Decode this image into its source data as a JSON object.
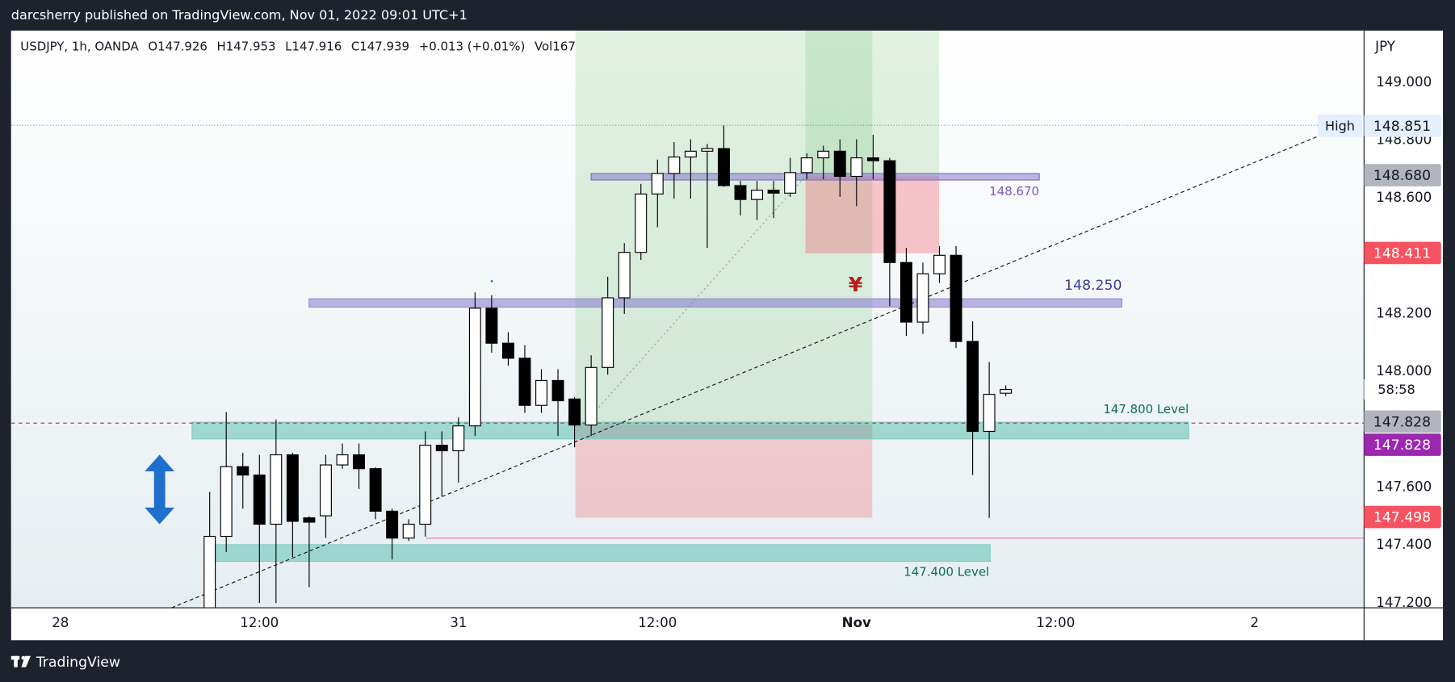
{
  "publisher": "darcsherry published on TradingView.com, Nov 01, 2022 09:01 UTC+1",
  "brand": "TradingView",
  "chart_data": {
    "type": "candlestick",
    "title": "USDJPY, 1h, OANDA",
    "ohlc_text": [
      "O147.926",
      "H147.953",
      "L147.916",
      "C147.939",
      "+0.013 (+0.01%)",
      "Vol167"
    ],
    "currency": "JPY",
    "x": [
      9,
      10,
      11,
      12,
      13,
      14,
      15,
      16,
      17,
      18,
      19,
      20,
      21,
      22,
      23,
      24,
      25,
      26,
      27,
      28,
      29,
      30,
      31,
      32,
      33,
      34,
      35,
      36,
      37,
      38,
      39,
      40,
      41,
      42,
      43,
      44,
      45,
      46,
      47,
      48,
      49,
      50,
      51,
      52,
      53,
      54,
      55,
      56,
      57
    ],
    "open": [
      147.16,
      147.431,
      147.672,
      147.643,
      147.473,
      147.713,
      147.495,
      147.502,
      147.678,
      147.713,
      147.665,
      147.518,
      147.425,
      147.473,
      147.746,
      147.727,
      147.813,
      148.22,
      148.099,
      148.047,
      147.884,
      147.97,
      147.906,
      147.816,
      148.015,
      148.256,
      148.413,
      148.615,
      148.686,
      148.743,
      148.763,
      148.772,
      148.644,
      148.596,
      148.628,
      148.618,
      148.689,
      148.74,
      148.763,
      148.676,
      148.74,
      148.73,
      148.378,
      148.172,
      148.339,
      148.403,
      148.105,
      147.794,
      147.926
    ],
    "high": [
      147.585,
      147.861,
      147.72,
      147.713,
      147.835,
      147.72,
      147.5,
      147.713,
      147.752,
      147.752,
      147.67,
      147.527,
      147.49,
      147.794,
      147.794,
      147.842,
      148.275,
      148.265,
      148.137,
      148.092,
      148.009,
      148.009,
      147.912,
      148.057,
      148.329,
      148.445,
      148.65,
      148.734,
      148.795,
      148.804,
      148.788,
      148.852,
      148.66,
      148.66,
      148.66,
      148.74,
      148.756,
      148.782,
      148.804,
      148.804,
      148.82,
      148.74,
      148.429,
      148.378,
      148.435,
      148.435,
      148.175,
      148.034,
      147.953
    ],
    "low": [
      147.1,
      147.377,
      147.527,
      147.2,
      147.2,
      147.36,
      147.255,
      147.425,
      147.665,
      147.595,
      147.49,
      147.351,
      147.415,
      147.43,
      147.569,
      147.617,
      147.778,
      148.066,
      148.021,
      147.858,
      147.858,
      147.778,
      147.739,
      147.778,
      147.99,
      148.2,
      148.387,
      148.5,
      148.599,
      148.599,
      148.429,
      148.64,
      148.541,
      148.525,
      148.532,
      148.605,
      148.666,
      148.666,
      148.605,
      148.573,
      148.666,
      148.227,
      148.124,
      148.131,
      148.307,
      148.082,
      147.643,
      147.495,
      147.916
    ],
    "close": [
      147.431,
      147.672,
      147.643,
      147.473,
      147.713,
      147.483,
      147.48,
      147.678,
      147.713,
      147.665,
      147.518,
      147.425,
      147.473,
      147.746,
      147.727,
      147.813,
      148.22,
      148.099,
      148.047,
      147.884,
      147.97,
      147.9,
      147.816,
      148.015,
      148.256,
      148.413,
      148.615,
      148.686,
      148.743,
      148.763,
      148.772,
      148.644,
      148.596,
      148.628,
      148.618,
      148.689,
      148.74,
      148.763,
      148.676,
      148.74,
      148.73,
      148.378,
      148.172,
      148.339,
      148.403,
      148.105,
      147.794,
      147.922,
      147.939
    ],
    "up_color": "#ffffff",
    "down_color": "#000000",
    "wick_color": "#000000",
    "xlim": [
      -2.97,
      78.6
    ],
    "xticks": [
      {
        "value": 0,
        "label": "28"
      },
      {
        "value": 12,
        "label": "12:00"
      },
      {
        "value": 24,
        "label": "31"
      },
      {
        "value": 36,
        "label": "12:00"
      },
      {
        "value": 48,
        "label": "Nov",
        "bold": true
      },
      {
        "value": 60,
        "label": "12:00"
      },
      {
        "value": 72,
        "label": "2"
      }
    ],
    "ylim": [
      147.184,
      149.18
    ],
    "yticks": [
      {
        "value": 149,
        "label": "149.000"
      },
      {
        "value": 148.8,
        "label": "148.800"
      },
      {
        "value": 148.6,
        "label": "148.600"
      },
      {
        "value": 148.2,
        "label": "148.200"
      },
      {
        "value": 148,
        "label": "148.000"
      },
      {
        "value": 147.6,
        "label": "147.600"
      },
      {
        "value": 147.4,
        "label": "147.400"
      },
      {
        "value": 147.2,
        "label": "147.200"
      }
    ],
    "grid": false,
    "price_labels": [
      {
        "value": 148.851,
        "label": "148.851",
        "tag": "High",
        "bg": "#e3effd",
        "fg": "#131722"
      },
      {
        "value": 148.68,
        "label": "148.680",
        "bg": "#b2b5be",
        "fg": "#131722"
      },
      {
        "value": 148.411,
        "label": "148.411",
        "bg": "#f7525f",
        "fg": "#ffffff"
      },
      {
        "value": 147.828,
        "label": "147.828",
        "bg": "#b2b5be",
        "fg": "#131722"
      },
      {
        "value": 147.828,
        "label": "147.828",
        "bg": "#9c27b0",
        "fg": "#ffffff"
      },
      {
        "value": 147.498,
        "label": "147.498",
        "bg": "#f7525f",
        "fg": "#ffffff"
      }
    ],
    "countdown": "58:58",
    "annotations": [
      "148.670",
      "148.250",
      "147.800 Level",
      "147.400 Level",
      "¥"
    ]
  }
}
